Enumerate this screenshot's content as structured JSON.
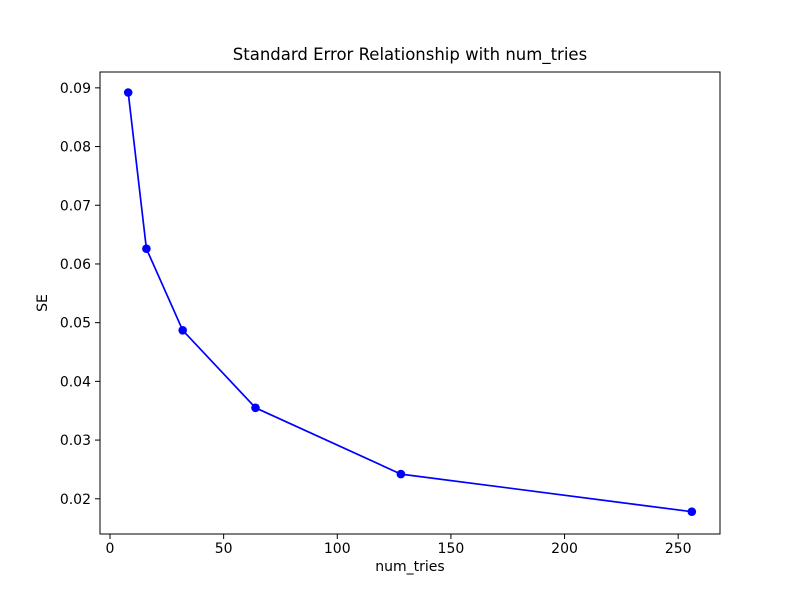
{
  "figure": {
    "background_color": "#ffffff",
    "text_color": "#000000"
  },
  "chart_data": {
    "type": "line",
    "title": "Standard Error Relationship with num_tries",
    "xlabel": "num_tries",
    "ylabel": "SE",
    "x": [
      8,
      16,
      32,
      64,
      128,
      256
    ],
    "y": [
      0.0892,
      0.0626,
      0.0487,
      0.0355,
      0.0242,
      0.0178
    ],
    "series": [
      {
        "name": "SE",
        "x": [
          8,
          16,
          32,
          64,
          128,
          256
        ],
        "y": [
          0.0892,
          0.0626,
          0.0487,
          0.0355,
          0.0242,
          0.0178
        ]
      }
    ],
    "xlim": [
      -4.4,
      268.4
    ],
    "ylim": [
      0.014,
      0.0927
    ],
    "xticks": [
      0,
      50,
      100,
      150,
      200,
      250
    ],
    "yticks": [
      0.02,
      0.03,
      0.04,
      0.05,
      0.06,
      0.07,
      0.08,
      0.09
    ],
    "ytick_decimals": 2,
    "line_color": "#0000ff",
    "marker": "o",
    "marker_radius": 4.3,
    "line_width": 1.7,
    "spine_color": "#000000",
    "grid": false,
    "legend": null
  }
}
